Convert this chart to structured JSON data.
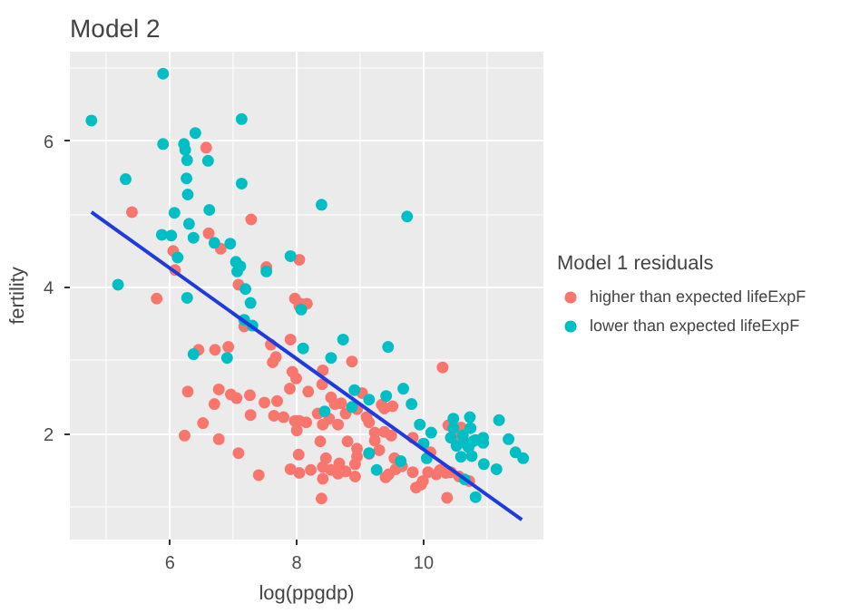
{
  "chart_data": {
    "type": "scatter",
    "title": "Model 2",
    "xlabel": "log(ppgdp)",
    "ylabel": "fertility",
    "legend_title": "Model 1 residuals",
    "xlim": [
      4.42,
      11.89
    ],
    "ylim": [
      0.56,
      7.22
    ],
    "xticks": [
      {
        "value": 5,
        "label": null
      },
      6,
      {
        "value": 7,
        "label": null
      },
      8,
      {
        "value": 9,
        "label": null
      },
      10,
      {
        "value": 11,
        "label": null
      }
    ],
    "yticks": [
      {
        "value": 1,
        "label": null
      },
      2,
      {
        "value": 3,
        "label": null
      },
      4,
      {
        "value": 5,
        "label": null
      },
      6,
      {
        "value": 7,
        "label": null
      }
    ],
    "grid": true,
    "legend": "right",
    "series": [
      {
        "name": "higher than expected lifeExpF",
        "color": "#f8766d",
        "marker": "circle",
        "x": [
          6.57,
          5.4,
          7.28,
          6.61,
          6.8,
          6.05,
          6.08,
          7.52,
          8.04,
          7.08,
          5.79,
          7.97,
          8.06,
          8.16,
          8.04,
          7.17,
          6.45,
          6.71,
          6.92,
          7.59,
          7.67,
          7.62,
          7.9,
          6.28,
          6.77,
          6.96,
          7.05,
          7.26,
          6.7,
          7.49,
          7.93,
          7.99,
          7.89,
          7.69,
          7.27,
          7.64,
          7.79,
          7.97,
          8.04,
          8.0,
          6.52,
          6.23,
          6.77,
          7.08,
          8.03,
          7.9,
          8.04,
          7.4,
          8.87,
          8.41,
          8.18,
          8.4,
          8.54,
          8.6,
          8.7,
          9.03,
          9.34,
          9.38,
          9.51,
          8.95,
          8.33,
          8.51,
          8.65,
          8.77,
          9.1,
          9.14,
          8.15,
          8.41,
          9.23,
          9.38,
          9.49,
          8.37,
          8.8,
          8.95,
          9.3,
          9.54,
          8.46,
          8.67,
          8.22,
          8.41,
          8.54,
          8.65,
          8.77,
          8.92,
          8.92,
          9.4,
          9.45,
          9.56,
          9.66,
          8.41,
          8.39,
          9.83,
          9.88,
          9.96,
          9.99,
          10.07,
          10.2,
          10.26,
          10.35,
          10.43,
          10.56,
          10.37,
          10.3,
          10.39,
          10.59,
          10.59,
          10.72,
          10.11,
          9.83,
          9.23,
          9.14,
          8.95
        ],
        "values": [
          5.91,
          5.03,
          4.93,
          4.74,
          4.53,
          4.5,
          4.24,
          4.28,
          4.38,
          4.04,
          3.85,
          3.85,
          3.78,
          3.78,
          3.75,
          3.47,
          3.15,
          3.15,
          3.19,
          3.22,
          3.05,
          2.98,
          3.29,
          2.58,
          2.61,
          2.54,
          2.49,
          2.53,
          2.41,
          2.43,
          2.85,
          2.76,
          2.62,
          2.45,
          2.26,
          2.25,
          2.23,
          2.18,
          2.18,
          2.05,
          2.15,
          1.98,
          1.93,
          1.74,
          1.72,
          1.52,
          1.47,
          1.44,
          2.99,
          2.87,
          2.58,
          2.68,
          2.5,
          2.41,
          2.42,
          2.56,
          2.4,
          2.35,
          2.38,
          2.34,
          2.28,
          2.21,
          2.13,
          2.28,
          2.23,
          2.16,
          2.16,
          2.13,
          2.02,
          2.03,
          1.98,
          1.9,
          1.9,
          1.8,
          1.78,
          1.67,
          1.67,
          1.6,
          1.51,
          1.55,
          1.51,
          1.46,
          1.49,
          1.59,
          1.42,
          1.41,
          1.45,
          1.52,
          1.56,
          1.39,
          1.12,
          1.48,
          1.27,
          1.31,
          1.36,
          1.48,
          1.45,
          1.51,
          1.47,
          1.48,
          1.42,
          1.13,
          2.91,
          2.12,
          2.09,
          1.98,
          1.36,
          1.75,
          1.95,
          1.91,
          1.73,
          1.69
        ]
      },
      {
        "name": "lower than expected lifeExpF",
        "color": "#00bfc4",
        "marker": "circle",
        "x": [
          4.76,
          5.89,
          5.89,
          5.3,
          6.22,
          6.24,
          6.4,
          6.27,
          6.6,
          6.26,
          6.28,
          7.13,
          7.13,
          6.07,
          6.62,
          6.3,
          5.87,
          6.02,
          6.37,
          6.7,
          6.95,
          6.12,
          7.04,
          7.11,
          7.06,
          7.52,
          7.9,
          5.18,
          7.19,
          6.27,
          7.27,
          8.39,
          9.74,
          7.17,
          7.3,
          6.37,
          6.9,
          8.07,
          8.1,
          8.73,
          8.54,
          9.44,
          8.91,
          9.14,
          9.41,
          9.68,
          9.81,
          8.87,
          8.44,
          9.94,
          10.12,
          10.0,
          9.14,
          9.26,
          9.64,
          10.05,
          10.47,
          10.73,
          10.47,
          10.62,
          10.74,
          10.43,
          10.52,
          10.67,
          10.71,
          10.78,
          10.82,
          10.94,
          10.94,
          10.59,
          10.76,
          10.95,
          11.15,
          11.19,
          11.34,
          11.45,
          11.57,
          10.82,
          10.65
        ],
        "values": [
          6.28,
          6.92,
          5.96,
          5.48,
          5.96,
          5.88,
          6.11,
          5.74,
          5.73,
          5.49,
          5.27,
          6.3,
          5.42,
          5.02,
          5.06,
          4.87,
          4.72,
          4.71,
          4.68,
          4.61,
          4.6,
          4.41,
          4.35,
          4.29,
          4.22,
          4.22,
          4.43,
          4.04,
          3.98,
          3.86,
          3.79,
          5.13,
          4.97,
          3.56,
          3.48,
          3.09,
          3.04,
          3.7,
          3.17,
          3.29,
          3.04,
          3.19,
          2.6,
          2.47,
          2.52,
          2.62,
          2.41,
          2.37,
          2.31,
          2.13,
          2.02,
          1.87,
          1.74,
          1.51,
          1.63,
          1.67,
          2.21,
          2.23,
          2.08,
          1.98,
          2.08,
          1.95,
          1.84,
          1.87,
          1.82,
          1.9,
          1.92,
          1.95,
          1.88,
          1.69,
          1.7,
          1.59,
          1.52,
          2.19,
          1.93,
          1.75,
          1.67,
          1.14,
          1.38
        ]
      },
      {
        "type": "line",
        "color": "#1f3be0",
        "line_style": "solid",
        "x": [
          4.76,
          11.55
        ],
        "values": [
          5.03,
          0.83
        ]
      }
    ]
  }
}
